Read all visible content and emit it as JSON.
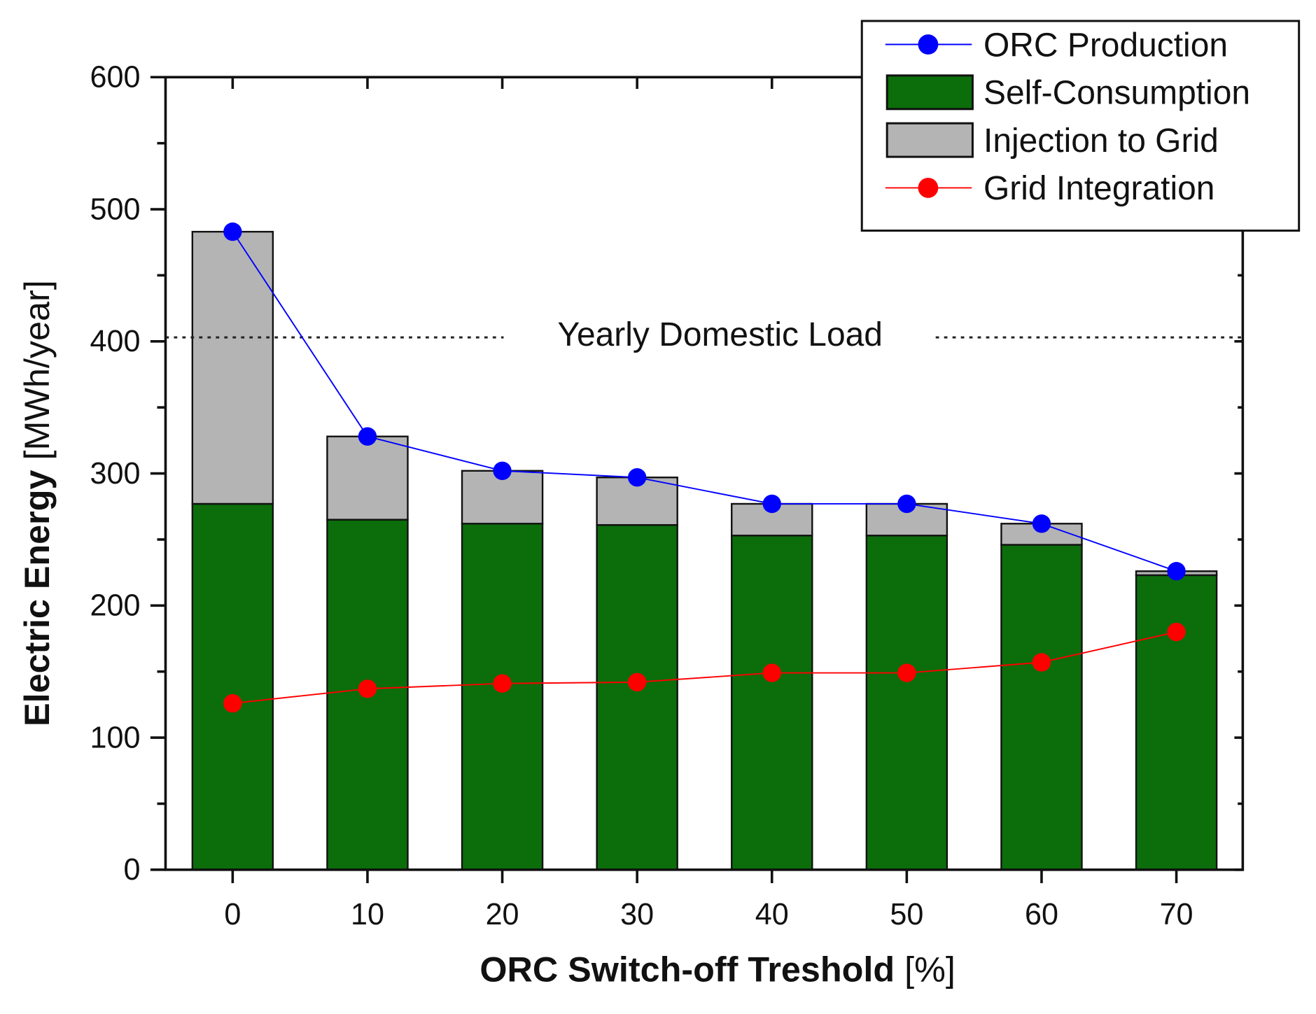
{
  "chart_data": {
    "type": "bar",
    "title": "",
    "xlabel": "ORC Switch-off Treshold",
    "xlabel_unit": "[%]",
    "ylabel": "Electric Energy",
    "ylabel_unit": "[MWh/year]",
    "ylim": [
      0,
      600
    ],
    "yticks": [
      0,
      100,
      200,
      300,
      400,
      500,
      600
    ],
    "categories": [
      0,
      10,
      20,
      30,
      40,
      50,
      60,
      70
    ],
    "series": [
      {
        "name": "ORC Production",
        "type": "line",
        "color": "#0000ff",
        "values": [
          483,
          328,
          302,
          297,
          277,
          277,
          262,
          226
        ]
      },
      {
        "name": "Self-Consumption",
        "type": "stacked-bar",
        "color": "#0b6e0b",
        "values": [
          277,
          265,
          262,
          261,
          253,
          253,
          246,
          223
        ]
      },
      {
        "name": "Injection to Grid",
        "type": "stacked-bar",
        "color": "#b4b4b4",
        "values": [
          206,
          63,
          40,
          36,
          24,
          24,
          16,
          3
        ]
      },
      {
        "name": "Grid Integration",
        "type": "line",
        "color": "#ff0000",
        "values": [
          126,
          137,
          141,
          142,
          149,
          149,
          157,
          180
        ]
      }
    ],
    "reference_line": {
      "label": "Yearly Domestic Load",
      "value": 403
    },
    "legend_position": "top-right",
    "grid": false
  }
}
